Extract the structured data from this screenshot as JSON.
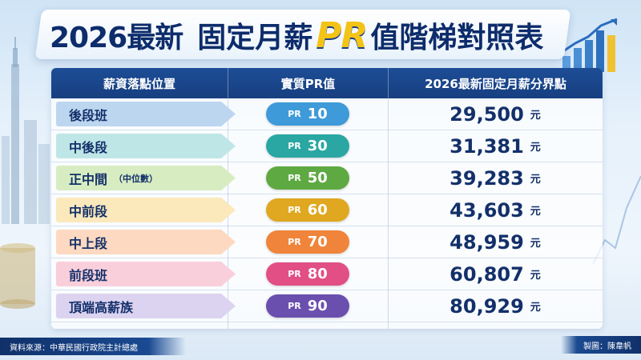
{
  "title": {
    "part1": "2026最新",
    "part2": "固定月薪",
    "part3": "PR",
    "part4": "值階梯對照表"
  },
  "table": {
    "headers": [
      "薪資落點位置",
      "實質PR值",
      "2026最新固定月薪分界點"
    ],
    "pr_prefix": "PR",
    "unit": "元",
    "rows": [
      {
        "level": "後段班",
        "sub": "",
        "pr": "10",
        "amount": "29,500",
        "arrow_color": "#bcd6f0",
        "pill_color": "#3e9ad8"
      },
      {
        "level": "中後段",
        "sub": "",
        "pr": "30",
        "amount": "31,381",
        "arrow_color": "#bfe6e6",
        "pill_color": "#2aa7a3"
      },
      {
        "level": "正中間",
        "sub": "（中位數）",
        "pr": "50",
        "amount": "39,283",
        "arrow_color": "#d7ecc1",
        "pill_color": "#5fa942"
      },
      {
        "level": "中前段",
        "sub": "",
        "pr": "60",
        "amount": "43,603",
        "arrow_color": "#fbe8bb",
        "pill_color": "#e0a820"
      },
      {
        "level": "中上段",
        "sub": "",
        "pr": "70",
        "amount": "48,959",
        "arrow_color": "#fcd9c0",
        "pill_color": "#f0843a"
      },
      {
        "level": "前段班",
        "sub": "",
        "pr": "80",
        "amount": "60,807",
        "arrow_color": "#f8cfda",
        "pill_color": "#e14f84"
      },
      {
        "level": "頂端高薪族",
        "sub": "",
        "pr": "90",
        "amount": "80,929",
        "arrow_color": "#dcd3f0",
        "pill_color": "#6a4fae"
      }
    ]
  },
  "footer": {
    "source": "資料來源：中華民國行政院主計總處",
    "credit": "製圖：陳韋帆"
  }
}
